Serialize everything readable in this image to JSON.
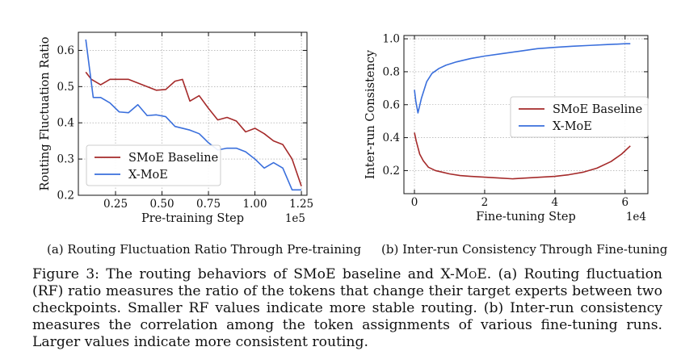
{
  "chart_data": [
    {
      "type": "line",
      "title": "",
      "xlabel": "Pre-training Step",
      "ylabel": "Routing Fluctuation Ratio",
      "x_multiplier_label": "1e5",
      "xlim": [
        0.05,
        1.28
      ],
      "ylim": [
        0.2,
        0.65
      ],
      "xticks": [
        0.25,
        0.5,
        0.75,
        1.0,
        1.25
      ],
      "xtick_labels": [
        "0.25",
        "0.50",
        "0.75",
        "1.00",
        "1.25"
      ],
      "yticks": [
        0.2,
        0.3,
        0.4,
        0.5,
        0.6
      ],
      "ytick_labels": [
        "0.2",
        "0.3",
        "0.4",
        "0.5",
        "0.6"
      ],
      "grid": true,
      "legend_position": "lower-left",
      "series": [
        {
          "name": "SMoE Baseline",
          "color": "#a52a2a",
          "x": [
            0.09,
            0.12,
            0.17,
            0.22,
            0.27,
            0.32,
            0.37,
            0.42,
            0.47,
            0.52,
            0.57,
            0.61,
            0.65,
            0.7,
            0.75,
            0.8,
            0.85,
            0.9,
            0.95,
            1.0,
            1.05,
            1.1,
            1.15,
            1.2,
            1.25
          ],
          "values": [
            0.54,
            0.52,
            0.505,
            0.52,
            0.52,
            0.52,
            0.51,
            0.5,
            0.49,
            0.492,
            0.515,
            0.52,
            0.46,
            0.475,
            0.44,
            0.408,
            0.415,
            0.405,
            0.375,
            0.385,
            0.37,
            0.35,
            0.34,
            0.3,
            0.225
          ]
        },
        {
          "name": "X-MoE",
          "color": "#3a6fdc",
          "x": [
            0.09,
            0.13,
            0.17,
            0.22,
            0.27,
            0.32,
            0.37,
            0.42,
            0.47,
            0.52,
            0.57,
            0.61,
            0.65,
            0.7,
            0.75,
            0.8,
            0.85,
            0.9,
            0.95,
            1.0,
            1.05,
            1.1,
            1.15,
            1.2,
            1.25
          ],
          "values": [
            0.63,
            0.47,
            0.47,
            0.455,
            0.43,
            0.428,
            0.45,
            0.42,
            0.422,
            0.417,
            0.39,
            0.385,
            0.38,
            0.37,
            0.345,
            0.325,
            0.33,
            0.33,
            0.32,
            0.3,
            0.275,
            0.29,
            0.275,
            0.215,
            0.215
          ]
        }
      ]
    },
    {
      "type": "line",
      "title": "",
      "xlabel": "Fine-tuning Step",
      "ylabel": "Inter-run Consistency",
      "x_multiplier_label": "1e4",
      "xlim": [
        -0.3,
        6.65
      ],
      "ylim": [
        0.06,
        1.02
      ],
      "xticks": [
        0,
        2,
        4,
        6
      ],
      "xtick_labels": [
        "0",
        "2",
        "4",
        "6"
      ],
      "yticks": [
        0.2,
        0.4,
        0.6,
        0.8,
        1.0
      ],
      "ytick_labels": [
        "0.2",
        "0.4",
        "0.6",
        "0.8",
        "1.0"
      ],
      "grid": true,
      "legend_position": "center-right",
      "series": [
        {
          "name": "SMoE Baseline",
          "color": "#a52a2a",
          "x": [
            0.0,
            0.05,
            0.1,
            0.15,
            0.25,
            0.4,
            0.6,
            0.8,
            1.0,
            1.3,
            1.6,
            2.0,
            2.4,
            2.8,
            3.2,
            3.6,
            4.0,
            4.4,
            4.8,
            5.2,
            5.6,
            5.9,
            6.15
          ],
          "values": [
            0.43,
            0.38,
            0.34,
            0.3,
            0.26,
            0.22,
            0.2,
            0.19,
            0.18,
            0.17,
            0.165,
            0.16,
            0.155,
            0.15,
            0.155,
            0.16,
            0.165,
            0.175,
            0.19,
            0.215,
            0.255,
            0.3,
            0.35
          ]
        },
        {
          "name": "X-MoE",
          "color": "#3a6fdc",
          "x": [
            0.0,
            0.04,
            0.1,
            0.2,
            0.35,
            0.5,
            0.7,
            0.9,
            1.2,
            1.6,
            2.0,
            2.5,
            3.0,
            3.5,
            4.0,
            4.5,
            5.0,
            5.5,
            6.0,
            6.15
          ],
          "values": [
            0.69,
            0.62,
            0.55,
            0.64,
            0.74,
            0.79,
            0.82,
            0.84,
            0.86,
            0.88,
            0.895,
            0.91,
            0.925,
            0.94,
            0.948,
            0.955,
            0.96,
            0.965,
            0.97,
            0.97
          ]
        }
      ]
    }
  ],
  "subcaptions": {
    "a": "(a) Routing Fluctuation Ratio Through Pre-training",
    "b": "(b) Inter-run Consistency Through Fine-tuning"
  },
  "caption": {
    "label": "Figure 3:",
    "text_1": "The routing behaviors of SMoE baseline and X-",
    "smallcaps": "MoE",
    "text_2": ". (a) Routing fluctuation (RF) ratio measures the ratio of the tokens that change their target experts between two checkpoints. Smaller RF values indicate more stable routing. (b) Inter-run consistency measures the correlation among the token assignments of various fine-tuning runs. Larger values indicate more consistent routing."
  }
}
